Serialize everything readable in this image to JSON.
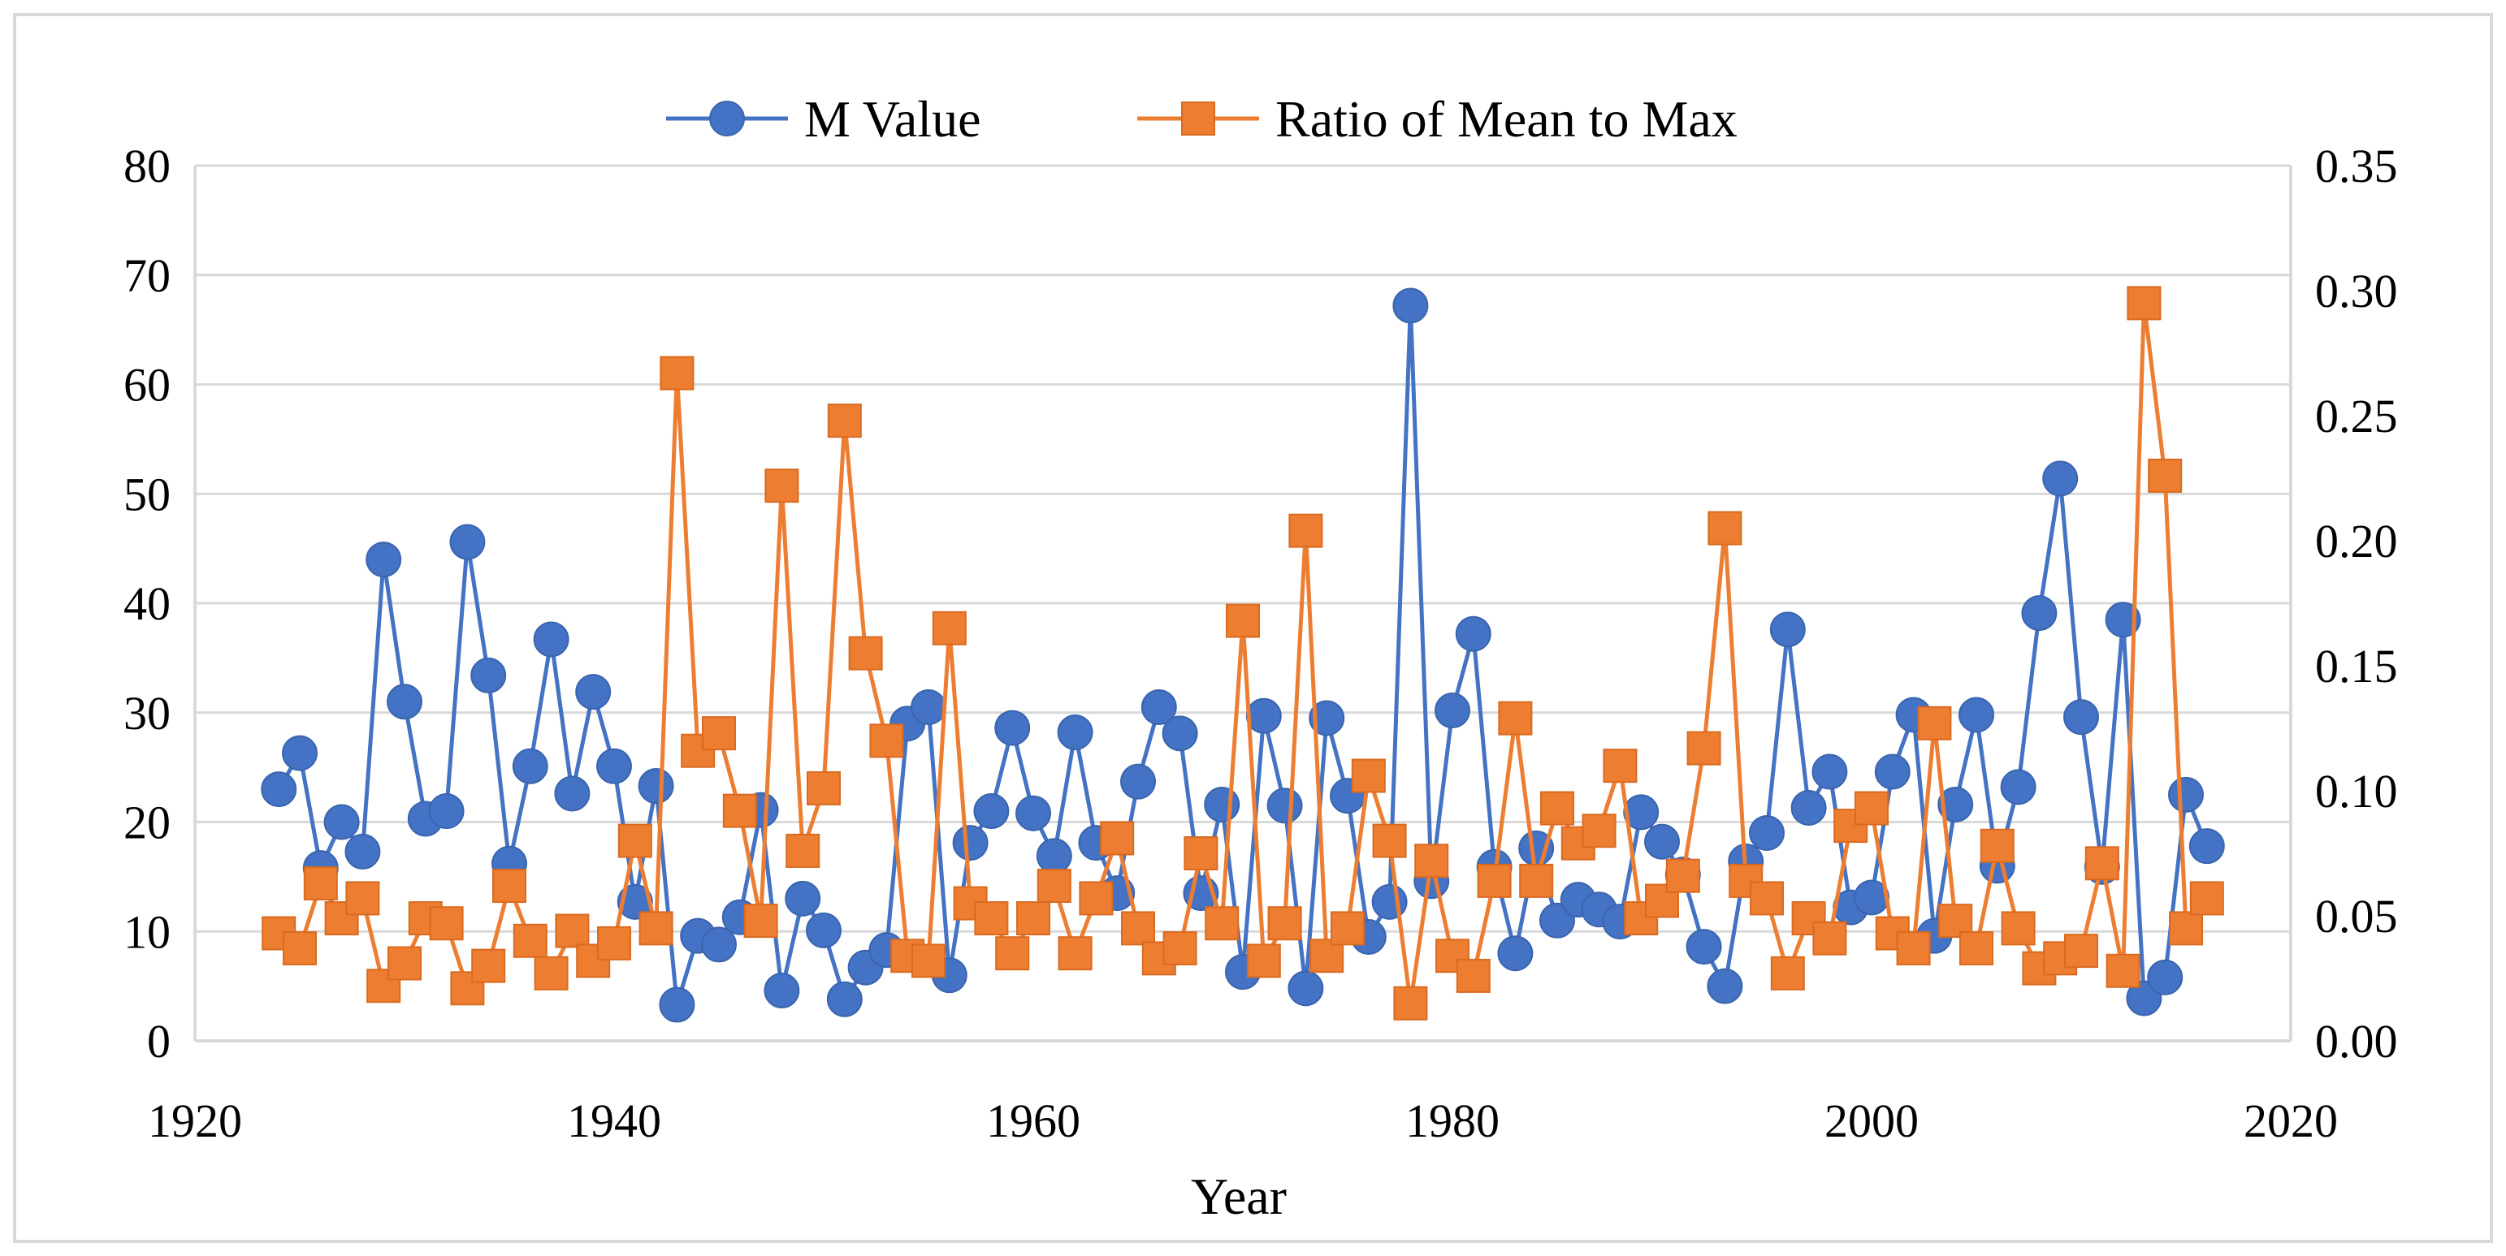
{
  "chart_data": {
    "type": "line",
    "title": "",
    "xlabel": "Year",
    "ylabel": "",
    "y2label": "",
    "xlim": [
      1920,
      2020
    ],
    "ylim": [
      0,
      80
    ],
    "y2lim": [
      0,
      0.35
    ],
    "x_ticks": [
      "1920",
      "1940",
      "1960",
      "1980",
      "2000",
      "2020"
    ],
    "y_ticks": [
      "0",
      "10",
      "20",
      "30",
      "40",
      "50",
      "60",
      "70",
      "80"
    ],
    "y2_ticks": [
      "0.00",
      "0.05",
      "0.10",
      "0.15",
      "0.20",
      "0.25",
      "0.30",
      "0.35"
    ],
    "grid": "horizontal",
    "legend_position": "top-center",
    "x": [
      1924,
      1925,
      1926,
      1927,
      1928,
      1929,
      1930,
      1931,
      1932,
      1933,
      1934,
      1935,
      1936,
      1937,
      1938,
      1939,
      1940,
      1941,
      1942,
      1943,
      1944,
      1945,
      1946,
      1947,
      1948,
      1949,
      1950,
      1951,
      1952,
      1953,
      1954,
      1955,
      1956,
      1957,
      1958,
      1959,
      1960,
      1961,
      1962,
      1963,
      1964,
      1965,
      1966,
      1967,
      1968,
      1969,
      1970,
      1971,
      1972,
      1973,
      1974,
      1975,
      1976,
      1977,
      1978,
      1979,
      1980,
      1981,
      1982,
      1983,
      1984,
      1985,
      1986,
      1987,
      1988,
      1989,
      1990,
      1991,
      1992,
      1993,
      1994,
      1995,
      1996,
      1997,
      1998,
      1999,
      2000,
      2001,
      2002,
      2003,
      2004,
      2005,
      2006,
      2007,
      2008,
      2009,
      2010,
      2011,
      2012,
      2013,
      2014,
      2015,
      2016
    ],
    "series": [
      {
        "name": "M Value",
        "axis": "left",
        "color": "#4472C4",
        "marker": "circle",
        "values": [
          23,
          26.3,
          15.8,
          20,
          17.3,
          44,
          31,
          20.3,
          21,
          45.6,
          33.4,
          16.2,
          25.1,
          36.7,
          22.6,
          31.9,
          25.1,
          12.7,
          23.3,
          3.3,
          9.6,
          8.8,
          11.3,
          21.1,
          4.6,
          13,
          10.1,
          3.8,
          6.7,
          8.3,
          29,
          30.5,
          6,
          18.1,
          21,
          28.6,
          20.8,
          16.9,
          28.2,
          18.1,
          13.5,
          23.7,
          30.5,
          28.1,
          13.5,
          21.6,
          6.3,
          29.7,
          21.5,
          4.8,
          29.5,
          22.4,
          9.5,
          12.7,
          67.2,
          14.6,
          30.2,
          37.2,
          15.9,
          8,
          17.6,
          11,
          12.9,
          12,
          10.9,
          20.9,
          18.2,
          15.2,
          8.6,
          5,
          16.4,
          19,
          37.6,
          21.3,
          24.6,
          12.2,
          13.1,
          24.6,
          29.8,
          9.6,
          21.6,
          29.8,
          16,
          23.2,
          39.1,
          51.4,
          29.6,
          15.9,
          38.5,
          3.9,
          5.8,
          22.5,
          17.8
        ]
      },
      {
        "name": "Ratio of Mean to Max",
        "axis": "right",
        "color": "#ED7D31",
        "marker": "square",
        "values": [
          0.043,
          0.037,
          0.063,
          0.049,
          0.057,
          0.022,
          0.031,
          0.049,
          0.047,
          0.021,
          0.03,
          0.062,
          0.04,
          0.027,
          0.044,
          0.032,
          0.039,
          0.08,
          0.045,
          0.267,
          0.116,
          0.123,
          0.092,
          0.048,
          0.222,
          0.076,
          0.101,
          0.248,
          0.155,
          0.12,
          0.034,
          0.032,
          0.165,
          0.055,
          0.049,
          0.035,
          0.049,
          0.062,
          0.035,
          0.057,
          0.081,
          0.045,
          0.033,
          0.037,
          0.075,
          0.047,
          0.168,
          0.032,
          0.047,
          0.204,
          0.034,
          0.045,
          0.106,
          0.08,
          0.015,
          0.072,
          0.034,
          0.026,
          0.064,
          0.129,
          0.064,
          0.093,
          0.079,
          0.084,
          0.11,
          0.049,
          0.056,
          0.066,
          0.117,
          0.205,
          0.064,
          0.057,
          0.027,
          0.049,
          0.041,
          0.086,
          0.093,
          0.043,
          0.037,
          0.127,
          0.048,
          0.037,
          0.078,
          0.045,
          0.029,
          0.033,
          0.036,
          0.071,
          0.028,
          0.295,
          0.226,
          0.045,
          0.057
        ]
      }
    ]
  }
}
